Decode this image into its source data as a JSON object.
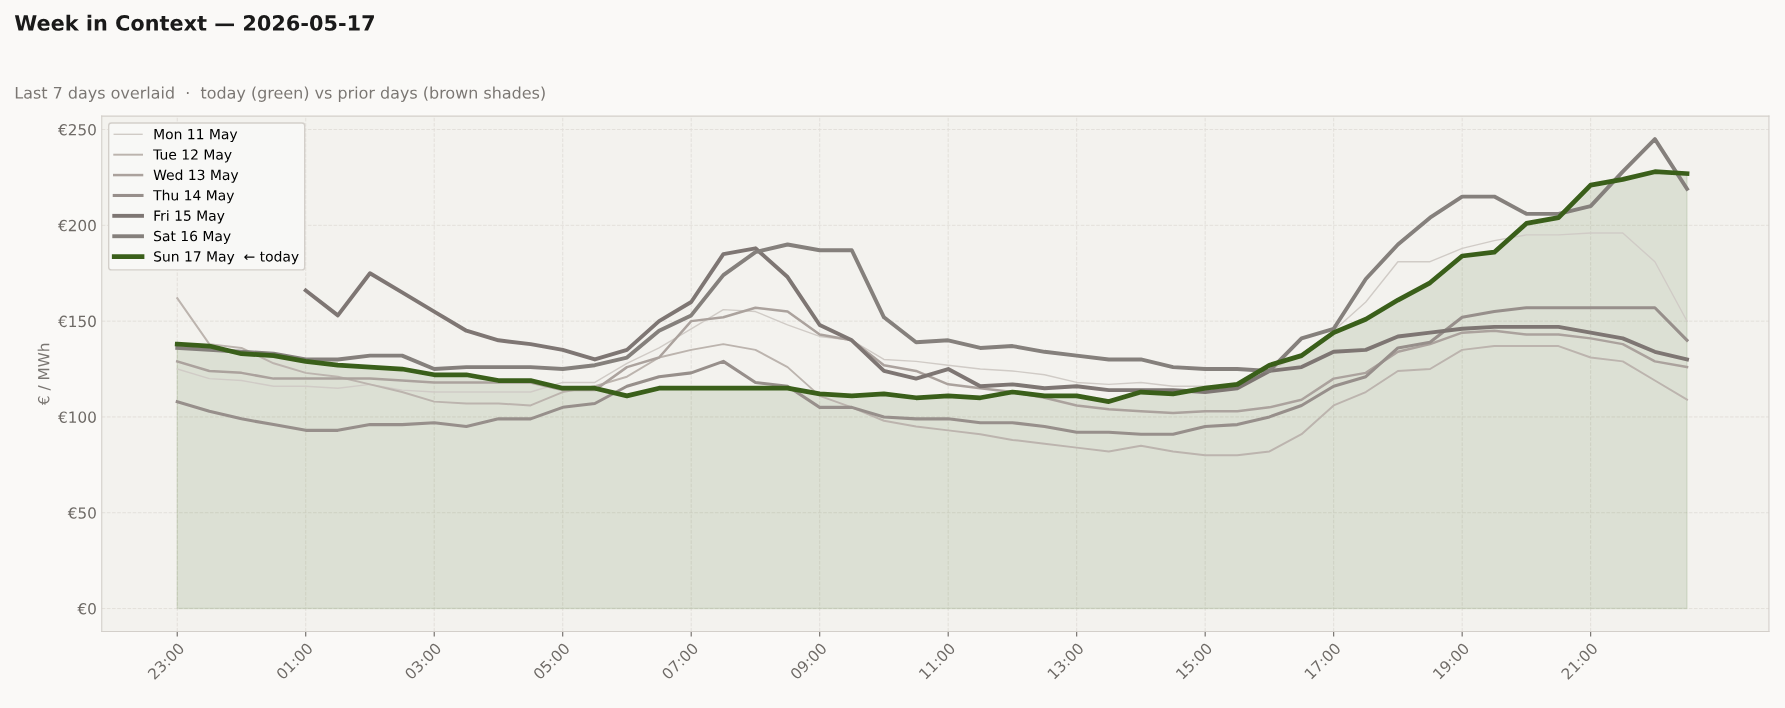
{
  "chart_data": {
    "type": "line",
    "title": "Week in Context — 2026-05-17",
    "subtitle": "Last 7 days overlaid  ·  today (green) vs prior days (brown shades)",
    "ylabel": "€ / MWh",
    "categories": [
      "23:00",
      null,
      null,
      null,
      "01:00",
      null,
      null,
      null,
      "03:00",
      null,
      null,
      null,
      "05:00",
      null,
      null,
      null,
      "07:00",
      null,
      null,
      null,
      "09:00",
      null,
      null,
      null,
      "11:00",
      null,
      null,
      null,
      "13:00",
      null,
      null,
      null,
      "15:00",
      null,
      null,
      null,
      "17:00",
      null,
      null,
      null,
      "19:00",
      null,
      null,
      null,
      "21:00",
      null,
      null,
      null
    ],
    "ylim": [
      -12,
      257
    ],
    "yticks": [
      {
        "value": 0,
        "label": "€0"
      },
      {
        "value": 50,
        "label": "€50"
      },
      {
        "value": 100,
        "label": "€100"
      },
      {
        "value": 150,
        "label": "€150"
      },
      {
        "value": 200,
        "label": "€200"
      },
      {
        "value": 250,
        "label": "€250"
      }
    ],
    "grid": true,
    "legend": "top left",
    "series": [
      {
        "name": "Mon 11 May",
        "color": "#d0cbc6",
        "values": [
          125,
          120,
          119,
          116,
          116,
          115,
          117,
          114,
          113,
          113,
          113,
          113,
          118,
          118,
          128,
          136,
          146,
          156,
          155,
          148,
          142,
          140,
          130,
          129,
          127,
          125,
          124,
          122,
          118,
          117,
          118,
          116,
          116,
          116,
          124,
          133,
          145,
          160,
          181,
          181,
          188,
          192,
          195,
          195,
          196,
          196,
          181,
          150
        ]
      },
      {
        "name": "Tue 12 May",
        "color": "#bcb4ae",
        "values": [
          162,
          138,
          136,
          128,
          123,
          121,
          117,
          113,
          108,
          107,
          107,
          106,
          113,
          116,
          121,
          131,
          135,
          138,
          135,
          126,
          111,
          105,
          98,
          95,
          93,
          91,
          88,
          86,
          84,
          82,
          85,
          82,
          80,
          80,
          82,
          91,
          106,
          113,
          124,
          125,
          135,
          137,
          137,
          137,
          131,
          129,
          119,
          109
        ]
      },
      {
        "name": "Wed 13 May",
        "color": "#aba29d",
        "values": [
          129,
          124,
          123,
          120,
          120,
          120,
          120,
          119,
          118,
          118,
          118,
          118,
          114,
          114,
          126,
          131,
          150,
          152,
          157,
          155,
          143,
          140,
          127,
          124,
          117,
          115,
          113,
          110,
          106,
          104,
          103,
          102,
          103,
          103,
          105,
          109,
          120,
          123,
          134,
          138,
          144,
          145,
          143,
          143,
          141,
          138,
          129,
          126
        ]
      },
      {
        "name": "Thu 14 May",
        "color": "#978f8b",
        "values": [
          108,
          103,
          99,
          96,
          93,
          93,
          96,
          96,
          97,
          95,
          99,
          99,
          105,
          107,
          116,
          121,
          123,
          129,
          118,
          116,
          105,
          105,
          100,
          99,
          99,
          97,
          97,
          95,
          92,
          92,
          91,
          91,
          95,
          96,
          100,
          106,
          116,
          121,
          136,
          139,
          152,
          155,
          157,
          157,
          157,
          157,
          157,
          140
        ]
      },
      {
        "name": "Fri 15 May",
        "color": "#7e7673",
        "values": [
          null,
          null,
          null,
          null,
          166,
          153,
          175,
          165,
          155,
          145,
          140,
          138,
          135,
          130,
          135,
          150,
          160,
          185,
          188,
          173,
          148,
          140,
          124,
          120,
          125,
          116,
          117,
          115,
          116,
          114,
          114,
          114,
          113,
          115,
          124,
          126,
          134,
          135,
          142,
          144,
          146,
          147,
          147,
          147,
          144,
          141,
          134,
          130
        ]
      },
      {
        "name": "Sat 16 May",
        "color": "#85807c",
        "values": [
          136,
          135,
          134,
          133,
          130,
          130,
          132,
          132,
          125,
          126,
          126,
          126,
          125,
          127,
          131,
          145,
          153,
          174,
          186,
          190,
          187,
          187,
          152,
          139,
          140,
          136,
          137,
          134,
          132,
          130,
          130,
          126,
          125,
          125,
          124,
          141,
          146,
          172,
          190,
          204,
          215,
          215,
          206,
          206,
          210,
          228,
          245,
          219
        ]
      },
      {
        "name": "Sun 17 May  ← today",
        "color": "#3a5f1a",
        "type": "area",
        "values": [
          138,
          137,
          133,
          132,
          129,
          127,
          126,
          125,
          122,
          122,
          119,
          119,
          115,
          115,
          111,
          115,
          115,
          115,
          115,
          115,
          112,
          111,
          112,
          110,
          111,
          110,
          113,
          111,
          111,
          108,
          113,
          112,
          115,
          117,
          127,
          132,
          144,
          151,
          161,
          170,
          184,
          186,
          201,
          204,
          221,
          224,
          228,
          227
        ]
      }
    ]
  }
}
